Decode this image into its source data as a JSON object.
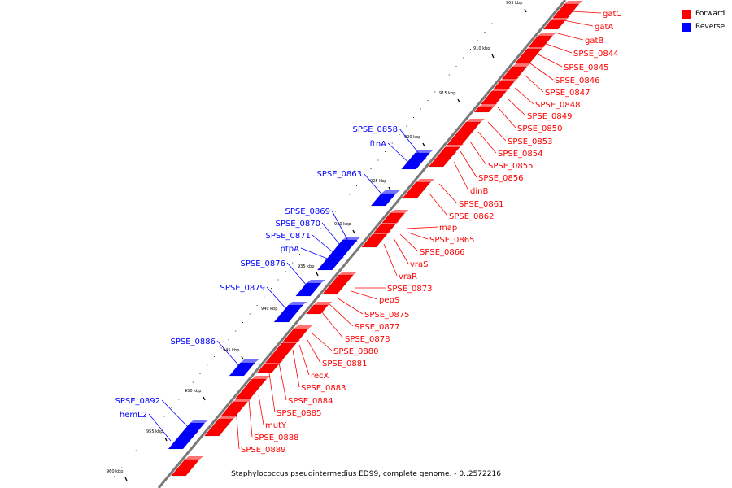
{
  "colors": {
    "forward": "#ff0000",
    "reverse": "#0000ff",
    "backbone": "#7a7a7a"
  },
  "legend": [
    {
      "label": "Forward",
      "color": "#ff0000"
    },
    {
      "label": "Reverse",
      "color": "#0000ff"
    }
  ],
  "caption": "Staphylococcus pseudintermedius ED99, complete genome. - 0..2572216",
  "ticks": [
    "905 kbp",
    "910 kbp",
    "915 kbp",
    "920 kbp",
    "925 kbp",
    "930 kbp",
    "935 kbp",
    "940 kbp",
    "945 kbp",
    "950 kbp",
    "955 kbp",
    "960 kbp"
  ],
  "forward_genes": [
    "gatC",
    "gatA",
    "gatB",
    "SPSE_0844",
    "SPSE_0845",
    "SPSE_0846",
    "SPSE_0847",
    "SPSE_0848",
    "SPSE_0849",
    "SPSE_0850",
    "SPSE_0853",
    "SPSE_0854",
    "SPSE_0855",
    "SPSE_0856",
    "dinB",
    "SPSE_0861",
    "SPSE_0862",
    "map",
    "SPSE_0865",
    "SPSE_0866",
    "vraS",
    "vraR",
    "SPSE_0873",
    "pepS",
    "SPSE_0875",
    "SPSE_0877",
    "SPSE_0878",
    "SPSE_0880",
    "SPSE_0881",
    "recX",
    "SPSE_0883",
    "SPSE_0884",
    "SPSE_0885",
    "mutY",
    "SPSE_0888",
    "SPSE_0889"
  ],
  "reverse_genes": [
    "SPSE_0858",
    "ftnA",
    "SPSE_0863",
    "SPSE_0869",
    "SPSE_0870",
    "SPSE_0871",
    "ptpA",
    "SPSE_0876",
    "SPSE_0879",
    "SPSE_0886",
    "SPSE_0892",
    "hemL2"
  ]
}
